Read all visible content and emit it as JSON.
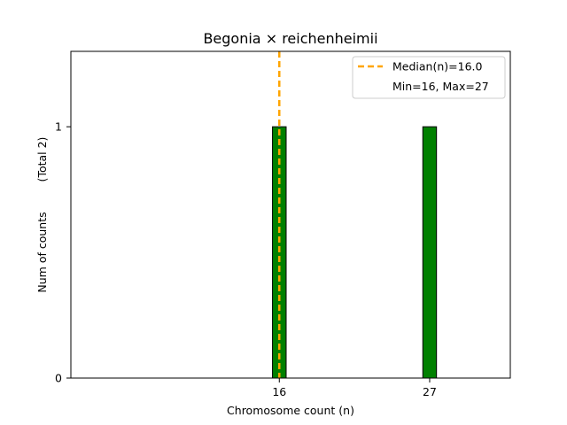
{
  "chart_data": {
    "type": "bar",
    "title": "Begonia × reichenheimii",
    "xlabel": "Chromosome count (n)",
    "ylabel": "Num of counts",
    "ylabel_secondary": "(Total 2)",
    "x": [
      16,
      27
    ],
    "values": [
      1,
      1
    ],
    "xticks": [
      16,
      27
    ],
    "yticks": [
      0,
      1
    ],
    "xlim": [
      0.75,
      32.9
    ],
    "ylim": [
      0,
      1.3
    ],
    "grid": false,
    "legend_position": "top-right",
    "median_line": {
      "x": 16.0
    },
    "legend": [
      {
        "label": "Median(n)=16.0",
        "kind": "dashed-line"
      },
      {
        "label": "Min=16, Max=27",
        "kind": "none"
      }
    ],
    "colors": {
      "bar_fill": "#008000",
      "bar_edge": "#000000",
      "median": "#FFA500"
    }
  }
}
